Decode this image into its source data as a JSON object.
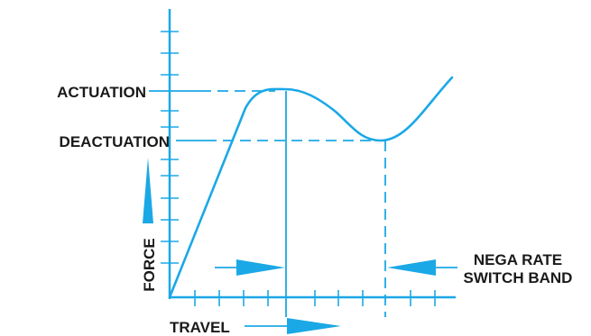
{
  "labels": {
    "actuation": "ACTUATION",
    "deactuation": "DEACTUATION",
    "force": "FORCE",
    "travel": "TRAVEL",
    "nega_rate_line1": "NEGA RATE",
    "nega_rate_line2": "SWITCH BAND"
  },
  "colors": {
    "line": "#1ba8e6",
    "text": "#1a1a1a",
    "background": "#ffffff"
  }
}
